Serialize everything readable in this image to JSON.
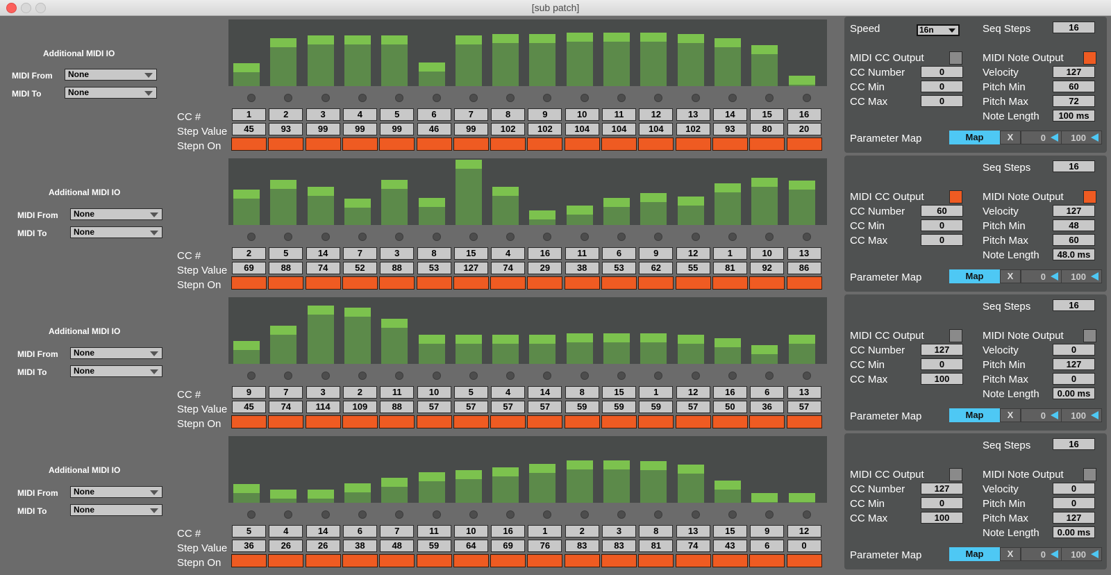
{
  "window": {
    "title": "[sub patch]"
  },
  "labels": {
    "additional_midi_io": "Additional MIDI IO",
    "midi_from": "MIDI From",
    "midi_to": "MIDI To",
    "cc_number_row": "CC #",
    "step_value_row": "Step Value",
    "step_on_row": "Stepn On",
    "speed": "Speed",
    "seq_steps": "Seq Steps",
    "midi_cc_output": "MIDI CC Output",
    "midi_note_output": "MIDI Note Output",
    "cc_number": "CC Number",
    "cc_min": "CC Min",
    "cc_max": "CC Max",
    "velocity": "Velocity",
    "pitch_min": "Pitch Min",
    "pitch_max": "Pitch Max",
    "note_length": "Note Length",
    "parameter_map": "Parameter Map",
    "map_button": "Map",
    "x_button": "X"
  },
  "colors": {
    "bar_fill": "#5c8a4a",
    "bar_cap": "#7cc24e",
    "step_on": "#ef5b22",
    "map_button": "#4ec8f4",
    "toggle_on": "#ef5b22",
    "toggle_off": "#8a8a8a"
  },
  "bar_max_value": 127,
  "sequencers": [
    {
      "midi_from": "None",
      "midi_to": "None",
      "cc_numbers": [
        "1",
        "2",
        "3",
        "4",
        "5",
        "6",
        "7",
        "8",
        "9",
        "10",
        "11",
        "12",
        "13",
        "14",
        "15",
        "16"
      ],
      "step_values": [
        "45",
        "93",
        "99",
        "99",
        "99",
        "46",
        "99",
        "102",
        "102",
        "104",
        "104",
        "104",
        "102",
        "93",
        "80",
        "20"
      ],
      "step_on": [
        true,
        true,
        true,
        true,
        true,
        true,
        true,
        true,
        true,
        true,
        true,
        true,
        true,
        true,
        true,
        true
      ],
      "speed": "16n",
      "seq_steps": "16",
      "midi_cc_output": false,
      "midi_note_output": true,
      "cc_number": "0",
      "cc_min": "0",
      "cc_max": "0",
      "velocity": "127",
      "pitch_min": "60",
      "pitch_max": "72",
      "note_length": "100 ms",
      "map_min": "0",
      "map_max": "100"
    },
    {
      "midi_from": "None",
      "midi_to": "None",
      "cc_numbers": [
        "2",
        "5",
        "14",
        "7",
        "3",
        "8",
        "15",
        "4",
        "16",
        "11",
        "6",
        "9",
        "12",
        "1",
        "10",
        "13"
      ],
      "step_values": [
        "69",
        "88",
        "74",
        "52",
        "88",
        "53",
        "127",
        "74",
        "29",
        "38",
        "53",
        "62",
        "55",
        "81",
        "92",
        "86"
      ],
      "step_on": [
        true,
        true,
        true,
        true,
        true,
        true,
        true,
        true,
        true,
        true,
        true,
        true,
        true,
        true,
        true,
        true
      ],
      "seq_steps": "16",
      "midi_cc_output": true,
      "midi_note_output": true,
      "cc_number": "60",
      "cc_min": "0",
      "cc_max": "0",
      "velocity": "127",
      "pitch_min": "48",
      "pitch_max": "60",
      "note_length": "48.0 ms",
      "map_min": "0",
      "map_max": "100"
    },
    {
      "midi_from": "None",
      "midi_to": "None",
      "cc_numbers": [
        "9",
        "7",
        "3",
        "2",
        "11",
        "10",
        "5",
        "4",
        "14",
        "8",
        "15",
        "1",
        "12",
        "16",
        "6",
        "13"
      ],
      "step_values": [
        "45",
        "74",
        "114",
        "109",
        "88",
        "57",
        "57",
        "57",
        "57",
        "59",
        "59",
        "59",
        "57",
        "50",
        "36",
        "57"
      ],
      "step_on": [
        true,
        true,
        true,
        true,
        true,
        true,
        true,
        true,
        true,
        true,
        true,
        true,
        true,
        true,
        true,
        true
      ],
      "seq_steps": "16",
      "midi_cc_output": false,
      "midi_note_output": false,
      "cc_number": "127",
      "cc_min": "0",
      "cc_max": "100",
      "velocity": "0",
      "pitch_min": "127",
      "pitch_max": "0",
      "note_length": "0.00 ms",
      "map_min": "0",
      "map_max": "100"
    },
    {
      "midi_from": "None",
      "midi_to": "None",
      "cc_numbers": [
        "5",
        "4",
        "14",
        "6",
        "7",
        "11",
        "10",
        "16",
        "1",
        "2",
        "3",
        "8",
        "13",
        "15",
        "9",
        "12"
      ],
      "step_values": [
        "36",
        "26",
        "26",
        "38",
        "48",
        "59",
        "64",
        "69",
        "76",
        "83",
        "83",
        "81",
        "74",
        "43",
        "6",
        "0"
      ],
      "step_on": [
        true,
        true,
        true,
        true,
        true,
        true,
        true,
        true,
        true,
        true,
        true,
        true,
        true,
        true,
        true,
        true
      ],
      "seq_steps": "16",
      "midi_cc_output": false,
      "midi_note_output": false,
      "cc_number": "127",
      "cc_min": "0",
      "cc_max": "100",
      "velocity": "0",
      "pitch_min": "0",
      "pitch_max": "127",
      "note_length": "0.00 ms",
      "map_min": "0",
      "map_max": "100"
    }
  ]
}
